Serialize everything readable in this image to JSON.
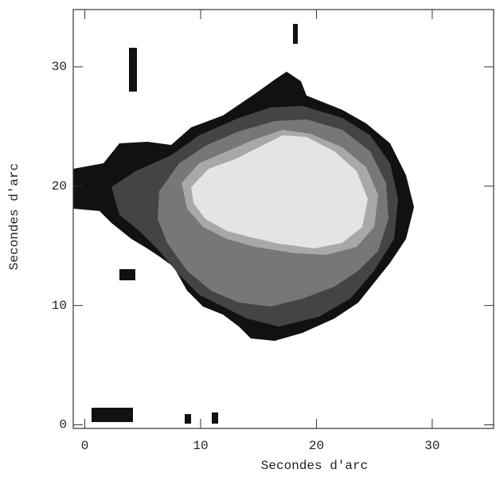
{
  "chart_data": {
    "type": "image",
    "xlabel": "Secondes d'arc",
    "ylabel": "Secondes d'arc",
    "xlim": [
      -1,
      35.3
    ],
    "ylim": [
      -0.3,
      34.8
    ],
    "xticks": [
      0,
      10,
      20,
      30
    ],
    "yticks": [
      0,
      10,
      20,
      30
    ]
  }
}
